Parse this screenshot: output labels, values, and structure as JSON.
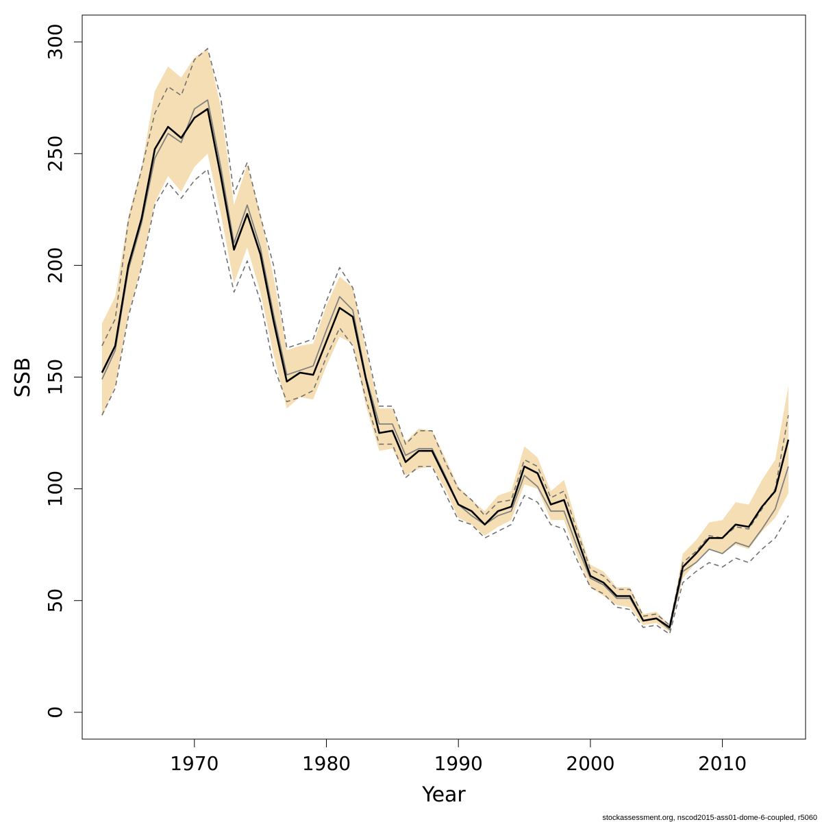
{
  "chart_data": {
    "type": "line",
    "title": "",
    "xlabel": "Year",
    "ylabel": "SSB",
    "xlim": [
      1961.5,
      2016.3
    ],
    "ylim": [
      -12,
      312
    ],
    "x_ticks": [
      1970,
      1980,
      1990,
      2000,
      2010
    ],
    "y_ticks": [
      0,
      50,
      100,
      150,
      200,
      250,
      300
    ],
    "grid": false,
    "legend": "none",
    "footer_note": "stockassessment.org, nscod2015-ass01-dome-6-coupled, r5060",
    "colors": {
      "band": "#f5deb3",
      "main_line": "#000000",
      "alt_line": "#808080",
      "dashed": "#707070",
      "axes": "#000000"
    },
    "x": [
      1963,
      1964,
      1965,
      1966,
      1967,
      1968,
      1969,
      1970,
      1971,
      1972,
      1973,
      1974,
      1975,
      1976,
      1977,
      1978,
      1979,
      1980,
      1981,
      1982,
      1983,
      1984,
      1985,
      1986,
      1987,
      1988,
      1989,
      1990,
      1991,
      1992,
      1993,
      1994,
      1995,
      1996,
      1997,
      1998,
      1999,
      2000,
      2001,
      2002,
      2003,
      2004,
      2005,
      2006,
      2007,
      2008,
      2009,
      2010,
      2011,
      2012,
      2013,
      2014,
      2015
    ],
    "series": [
      {
        "role": "ci_band_lower",
        "values": [
          132,
          146,
          178,
          200,
          228,
          240,
          233,
          244,
          250,
          223,
          192,
          208,
          188,
          160,
          136,
          141,
          140,
          155,
          168,
          165,
          137,
          117,
          118,
          106,
          109,
          110,
          100,
          87,
          84,
          79,
          83,
          86,
          102,
          100,
          86,
          86,
          70,
          56,
          52,
          48,
          47,
          39,
          40,
          36,
          60,
          67,
          73,
          71,
          75,
          73,
          81,
          87,
          98
        ]
      },
      {
        "role": "ci_band_upper",
        "values": [
          174,
          186,
          222,
          244,
          278,
          289,
          284,
          293,
          297,
          271,
          227,
          245,
          223,
          195,
          162,
          164,
          165,
          182,
          195,
          190,
          162,
          136,
          136,
          121,
          127,
          126,
          114,
          101,
          95,
          90,
          97,
          99,
          119,
          114,
          99,
          104,
          84,
          66,
          63,
          56,
          56,
          44,
          45,
          39,
          71,
          77,
          85,
          86,
          94,
          93,
          104,
          113,
          146
        ]
      },
      {
        "role": "estimate",
        "values": [
          152,
          164,
          200,
          221,
          252,
          262,
          257,
          266,
          270,
          240,
          207,
          223,
          205,
          175,
          148,
          152,
          151,
          166,
          181,
          177,
          149,
          125,
          126,
          112,
          117,
          117,
          105,
          93,
          90,
          84,
          90,
          92,
          110,
          107,
          93,
          95,
          78,
          61,
          58,
          52,
          52,
          41,
          42,
          38,
          65,
          71,
          78,
          78,
          84,
          83,
          92,
          99,
          122
        ]
      },
      {
        "role": "alt_estimate",
        "values": [
          149,
          162,
          198,
          219,
          248,
          259,
          255,
          270,
          274,
          244,
          210,
          227,
          208,
          178,
          151,
          153,
          155,
          171,
          186,
          180,
          150,
          129,
          129,
          115,
          118,
          118,
          106,
          93,
          88,
          84,
          88,
          90,
          106,
          101,
          90,
          90,
          74,
          60,
          57,
          51,
          51,
          41,
          42,
          37,
          63,
          67,
          73,
          71,
          76,
          74,
          82,
          91,
          110
        ]
      },
      {
        "role": "alt_ci_lower",
        "values": [
          133,
          145,
          177,
          199,
          227,
          237,
          230,
          238,
          243,
          215,
          188,
          202,
          184,
          155,
          139,
          141,
          144,
          159,
          172,
          164,
          140,
          120,
          120,
          105,
          110,
          110,
          98,
          86,
          84,
          78,
          81,
          84,
          97,
          94,
          84,
          82,
          68,
          56,
          53,
          47,
          46,
          38,
          39,
          35,
          58,
          63,
          67,
          65,
          69,
          67,
          73,
          78,
          88
        ]
      },
      {
        "role": "alt_ci_upper",
        "values": [
          164,
          176,
          220,
          243,
          268,
          280,
          276,
          292,
          297,
          275,
          232,
          246,
          222,
          200,
          163,
          165,
          167,
          184,
          199,
          190,
          164,
          137,
          137,
          120,
          126,
          126,
          112,
          100,
          95,
          88,
          94,
          95,
          113,
          110,
          96,
          99,
          81,
          64,
          61,
          55,
          55,
          43,
          44,
          39,
          67,
          72,
          79,
          78,
          83,
          82,
          91,
          100,
          133
        ]
      }
    ]
  }
}
